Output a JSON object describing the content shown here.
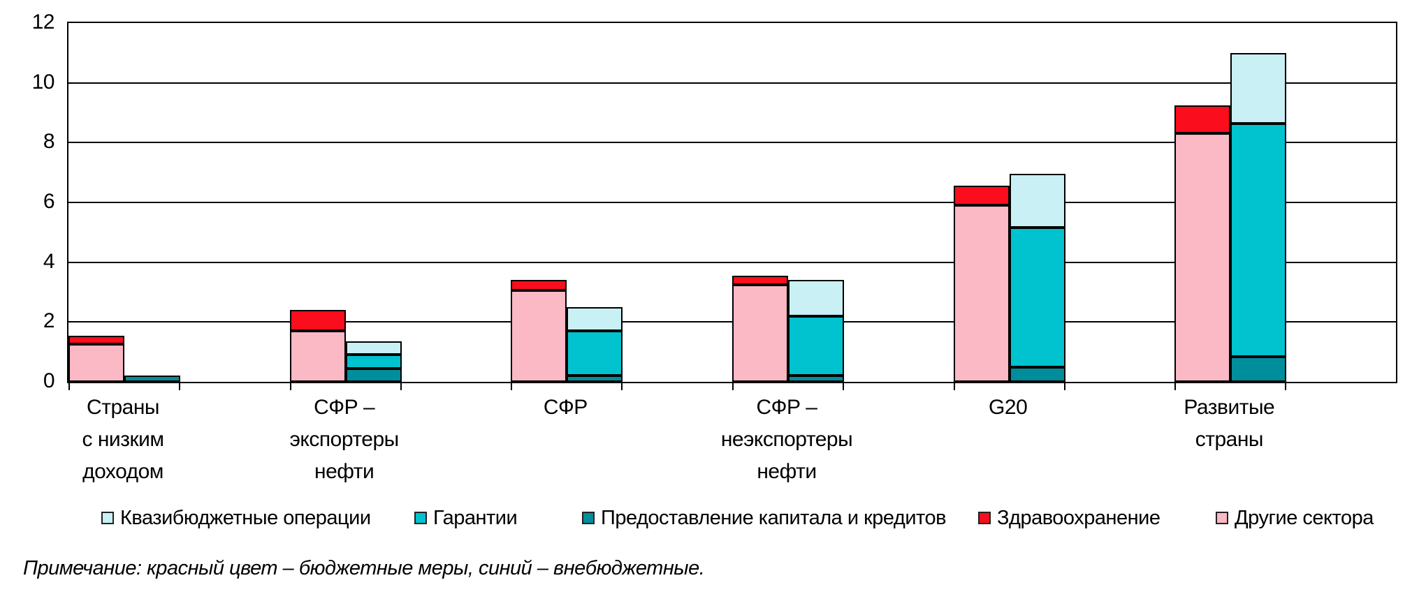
{
  "note": "Примечание: красный цвет – бюджетные меры, синий – внебюджетные.",
  "colors": {
    "quasi_fiscal": "#C9F0F4",
    "guarantees": "#01C2CF",
    "equity_loans": "#018E9C",
    "health": "#FA0D1C",
    "other_sectors": "#FBB8C5",
    "line": "#000000"
  },
  "legend": [
    {
      "id": "quasi_fiscal",
      "label": "Квазибюджетные операции"
    },
    {
      "id": "guarantees",
      "label": "Гарантии"
    },
    {
      "id": "equity_loans",
      "label": "Предоставление капитала и кредитов"
    },
    {
      "id": "health",
      "label": "Здравоохранение"
    },
    {
      "id": "other_sectors",
      "label": "Другие сектора"
    }
  ],
  "chart_data": {
    "type": "bar",
    "stacked": true,
    "grid": true,
    "legend_position": "bottom",
    "ylim": [
      0,
      12
    ],
    "y_step": 2,
    "categories": [
      "Страны с низким доходом",
      "СФР – экспортеры нефти",
      "СФР",
      "СФР – неэкспортеры нефти",
      "G20",
      "Развитые страны"
    ],
    "category_label_lines": [
      [
        "Страны",
        "с низким",
        "доходом"
      ],
      [
        "СФР –",
        "экспортеры",
        "нефти"
      ],
      [
        "СФР"
      ],
      [
        "СФР –",
        "неэкспортеры",
        "нефти"
      ],
      [
        "G20"
      ],
      [
        "Развитые",
        "страны"
      ]
    ],
    "bars_per_category": [
      "budget",
      "off_budget"
    ],
    "series": [
      {
        "id": "other_sectors",
        "name": "Другие сектора",
        "bar": "budget",
        "values": [
          1.25,
          1.7,
          3.05,
          3.25,
          5.9,
          8.3
        ]
      },
      {
        "id": "health",
        "name": "Здравоохранение",
        "bar": "budget",
        "values": [
          0.3,
          0.7,
          0.35,
          0.3,
          0.65,
          0.95
        ]
      },
      {
        "id": "equity_loans",
        "name": "Предоставление капитала и кредитов",
        "bar": "off_budget",
        "values": [
          0.2,
          0.45,
          0.2,
          0.2,
          0.5,
          0.85
        ]
      },
      {
        "id": "guarantees",
        "name": "Гарантии",
        "bar": "off_budget",
        "values": [
          0,
          0.45,
          1.5,
          2.0,
          4.65,
          7.8
        ]
      },
      {
        "id": "quasi_fiscal",
        "name": "Квазибюджетные операции",
        "bar": "off_budget",
        "values": [
          0,
          0.45,
          0.8,
          1.2,
          1.8,
          2.35
        ]
      }
    ]
  }
}
